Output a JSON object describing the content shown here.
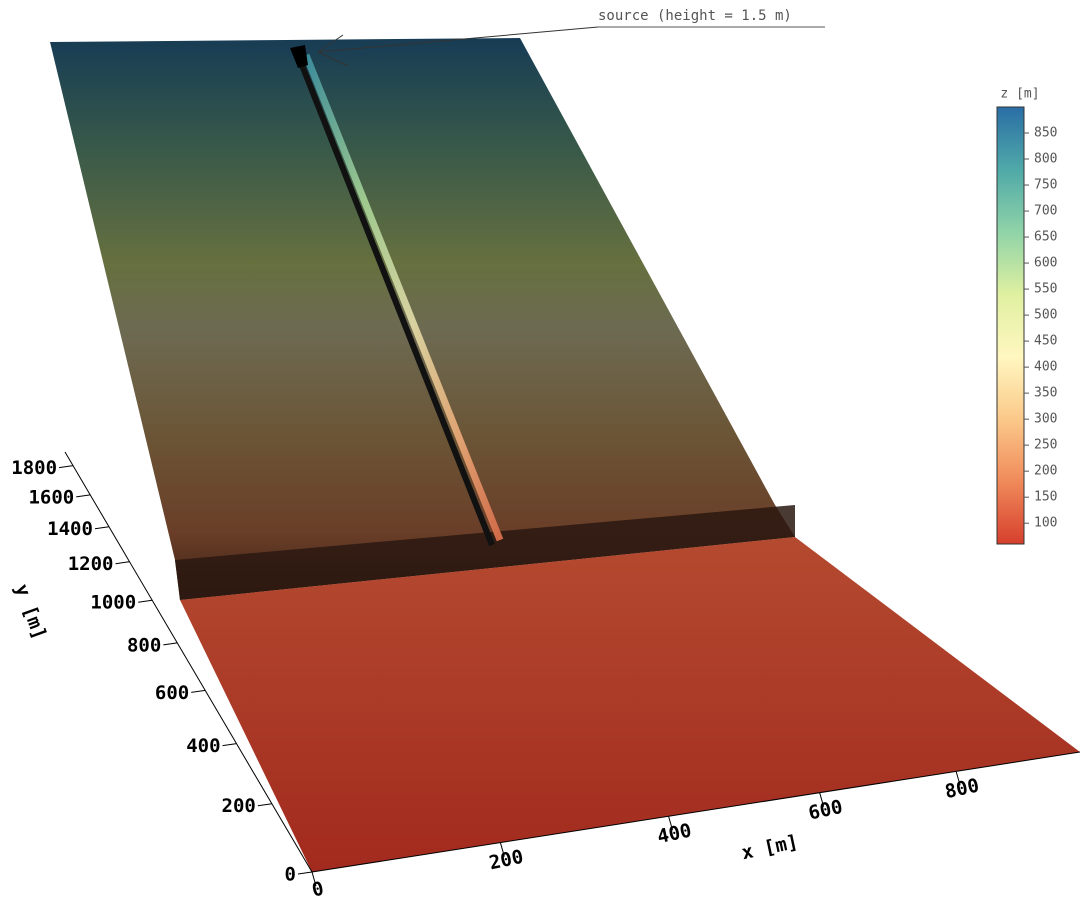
{
  "chart_data": {
    "type": "surface",
    "annotation": "source (height = 1.5 m)",
    "xlabel": "x [m]",
    "ylabel": "y [m]",
    "xlim": [
      0,
      1000
    ],
    "xticks": [
      0,
      200,
      400,
      600,
      800
    ],
    "ylim": [
      0,
      1900
    ],
    "yticks": [
      0,
      200,
      400,
      600,
      800,
      1000,
      1200,
      1400,
      1600,
      1800
    ],
    "colorbar": {
      "label": "z [m]",
      "lim": [
        60,
        900
      ],
      "ticks": [
        100,
        150,
        200,
        250,
        300,
        350,
        400,
        450,
        500,
        550,
        600,
        650,
        700,
        750,
        800,
        850
      ],
      "colors": [
        "#d63f2d",
        "#f08a5a",
        "#fbc98a",
        "#fff7c0",
        "#dff0a0",
        "#8fd3a8",
        "#4fa9a8",
        "#2a6ea6"
      ]
    }
  }
}
